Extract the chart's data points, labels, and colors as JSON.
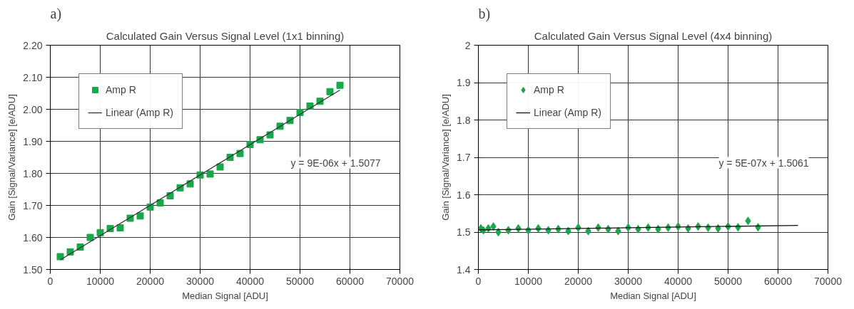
{
  "chart_data": [
    {
      "type": "scatter",
      "title": "Calculated Gain Versus Signal Level (1x1 binning)",
      "xlabel": "Median Signal [ADU]",
      "ylabel": "Gain [Signal/Variance] [e/ADU]",
      "annotations": [
        "a)",
        "y = 9E-06x + 1.5077"
      ],
      "series": [
        {
          "name": "Amp R",
          "color": "#1aa64a",
          "marker": "square",
          "x": [
            2000,
            4000,
            6000,
            8000,
            10000,
            12000,
            14000,
            16000,
            18000,
            20000,
            22000,
            24000,
            26000,
            28000,
            30000,
            32000,
            34000,
            36000,
            38000,
            40000,
            42000,
            44000,
            46000,
            48000,
            50000,
            52000,
            54000,
            56000,
            58000
          ],
          "values": [
            1.54,
            1.555,
            1.57,
            1.6,
            1.615,
            1.628,
            1.63,
            1.66,
            1.667,
            1.695,
            1.708,
            1.73,
            1.755,
            1.767,
            1.795,
            1.798,
            1.82,
            1.85,
            1.862,
            1.89,
            1.905,
            1.92,
            1.947,
            1.965,
            1.99,
            2.01,
            2.025,
            2.055,
            2.075
          ]
        },
        {
          "name": "Linear (Amp R)",
          "type": "line",
          "color": "#333333",
          "x": [
            2000,
            58000
          ],
          "values": [
            1.53,
            2.06
          ]
        }
      ],
      "xlim": [
        0,
        70000
      ],
      "xticks": [
        0,
        10000,
        20000,
        30000,
        40000,
        50000,
        60000,
        70000
      ],
      "ylim": [
        1.5,
        2.2
      ],
      "yticks": [
        {
          "value": 1.5,
          "label": "1.50"
        },
        {
          "value": 1.6,
          "label": "1.60"
        },
        {
          "value": 1.7,
          "label": "1.70"
        },
        {
          "value": 1.8,
          "label": "1.80"
        },
        {
          "value": 1.9,
          "label": "1.90"
        },
        {
          "value": 2.0,
          "label": "2.00"
        },
        {
          "value": 2.1,
          "label": "2.10"
        },
        {
          "value": 2.2,
          "label": "2.20"
        }
      ],
      "grid": true,
      "legend": "top left"
    },
    {
      "type": "scatter",
      "title": "Calculated Gain Versus Signal Level (4x4 binning)",
      "xlabel": "Median Signal [ADU]",
      "ylabel": "Gain [Signal/Variance] [e/ADU]",
      "annotations": [
        "b)",
        "y = 5E-07x + 1.5061"
      ],
      "series": [
        {
          "name": "Amp R",
          "color": "#1aa64a",
          "marker": "diamond",
          "x": [
            500,
            1000,
            2000,
            3000,
            4000,
            6000,
            8000,
            10000,
            12000,
            14000,
            16000,
            18000,
            20000,
            22000,
            24000,
            26000,
            28000,
            30000,
            32000,
            34000,
            36000,
            38000,
            40000,
            42000,
            44000,
            46000,
            48000,
            50000,
            52000,
            54000,
            56000
          ],
          "values": [
            1.51,
            1.505,
            1.51,
            1.515,
            1.5,
            1.505,
            1.51,
            1.505,
            1.51,
            1.505,
            1.508,
            1.503,
            1.512,
            1.503,
            1.512,
            1.508,
            1.503,
            1.512,
            1.508,
            1.512,
            1.508,
            1.512,
            1.515,
            1.51,
            1.515,
            1.512,
            1.51,
            1.515,
            1.513,
            1.53,
            1.513
          ]
        },
        {
          "name": "Linear (Amp R)",
          "type": "line",
          "color": "#111111",
          "x": [
            0,
            64000
          ],
          "values": [
            1.506,
            1.518
          ]
        }
      ],
      "xlim": [
        0,
        70000
      ],
      "xticks": [
        0,
        10000,
        20000,
        30000,
        40000,
        50000,
        60000,
        70000
      ],
      "ylim": [
        1.4,
        2.0
      ],
      "yticks": [
        1.4,
        1.5,
        1.6,
        1.7,
        1.8,
        1.9,
        2
      ],
      "grid": true,
      "legend": "top left"
    }
  ]
}
